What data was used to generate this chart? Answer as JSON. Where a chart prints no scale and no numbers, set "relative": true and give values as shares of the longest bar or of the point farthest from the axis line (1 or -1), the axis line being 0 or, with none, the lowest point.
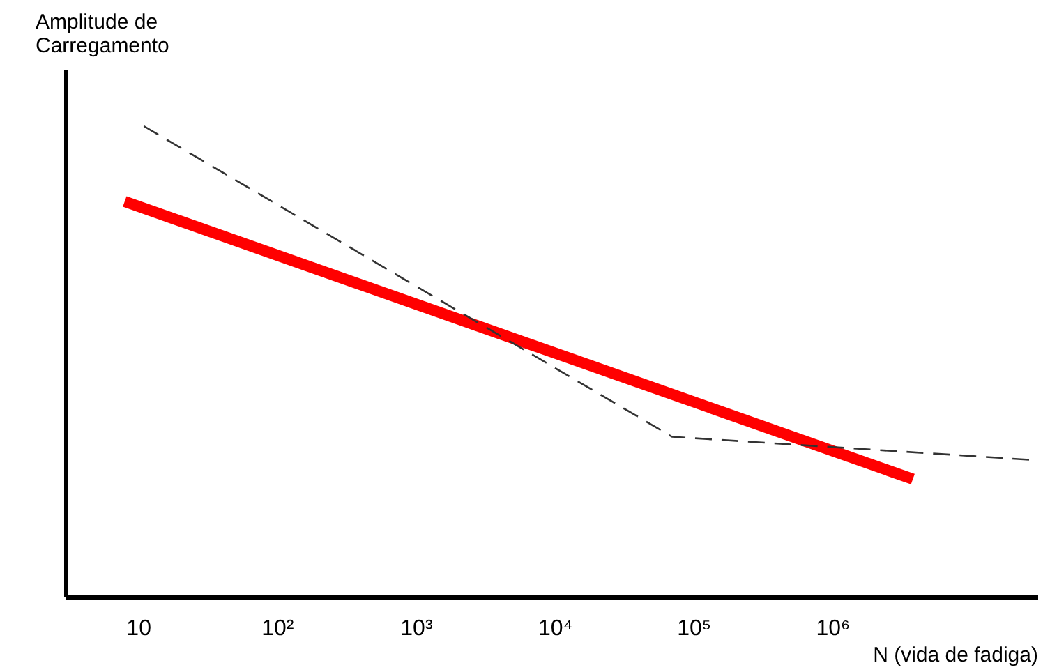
{
  "chart_data": {
    "type": "line",
    "relative": true,
    "xlabel": "N (vida de fadiga)",
    "ylabel": "Amplitude de Carregamento",
    "log": "x",
    "xlim": [
      3,
      30000000
    ],
    "xticks": [
      {
        "value": 10,
        "label": "10"
      },
      {
        "value": 100,
        "label": "10²"
      },
      {
        "value": 1000,
        "label": "10³"
      },
      {
        "value": 10000,
        "label": "10⁴"
      },
      {
        "value": 100000,
        "label": "10⁵"
      },
      {
        "value": 1000000,
        "label": "10⁶"
      }
    ],
    "tick_labels": "x",
    "series": [
      {
        "color": "#ff0000",
        "x": [
          8,
          3800000
        ],
        "values": [
          0.84,
          0.25
        ]
      },
      {
        "color": "#333333",
        "line_style": "dashed",
        "x": [
          11,
          70000,
          30000000
        ],
        "values": [
          1.0,
          0.34,
          0.29
        ]
      }
    ]
  }
}
